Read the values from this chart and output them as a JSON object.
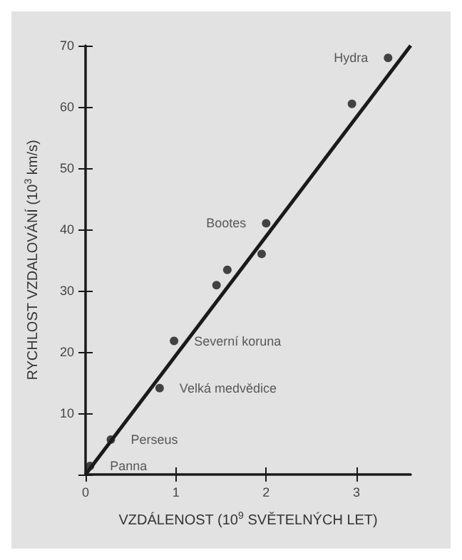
{
  "chart_data": {
    "type": "scatter",
    "xlabel": "VZDÁLENOST (10$^{9}$ SVĚTELNÝCH LET)",
    "ylabel": "RYCHLOST VZDALOVÁNÍ (10$^{3}$ km/s)",
    "x": [
      0.05,
      0.28,
      0.82,
      0.98,
      1.45,
      1.57,
      1.95,
      2.0,
      2.95,
      3.35
    ],
    "series": [
      {
        "color": "#1a1a1a",
        "marker": "circle",
        "values": [
          1.4,
          5.7,
          14.1,
          21.8,
          30.9,
          33.4,
          36,
          41,
          60.5,
          68
        ]
      },
      {
        "type": "line",
        "color": "#1a1a1a",
        "marker": "none",
        "x": [
          0,
          3.6
        ],
        "values": [
          0,
          70
        ]
      }
    ],
    "annotations": [
      {
        "text": "Hydra",
        "x": 3.35,
        "y": 68
      },
      {
        "text": "Bootes",
        "x": 2.0,
        "y": 41
      },
      {
        "text": "Severní koruna",
        "x": 0.98,
        "y": 21.8
      },
      {
        "text": "Velká medvědice",
        "x": 0.82,
        "y": 14.1
      },
      {
        "text": "Perseus",
        "x": 0.28,
        "y": 5.7
      },
      {
        "text": "Panna",
        "x": 0.05,
        "y": 1.4
      }
    ],
    "xlim": [
      0,
      3.6
    ],
    "xticks": [
      0,
      1,
      2,
      3
    ],
    "ylim": [
      0,
      70
    ],
    "yticks": [
      {
        "value": 0,
        "label": null
      },
      10,
      20,
      30,
      40,
      50,
      60,
      70
    ],
    "grid": false
  }
}
